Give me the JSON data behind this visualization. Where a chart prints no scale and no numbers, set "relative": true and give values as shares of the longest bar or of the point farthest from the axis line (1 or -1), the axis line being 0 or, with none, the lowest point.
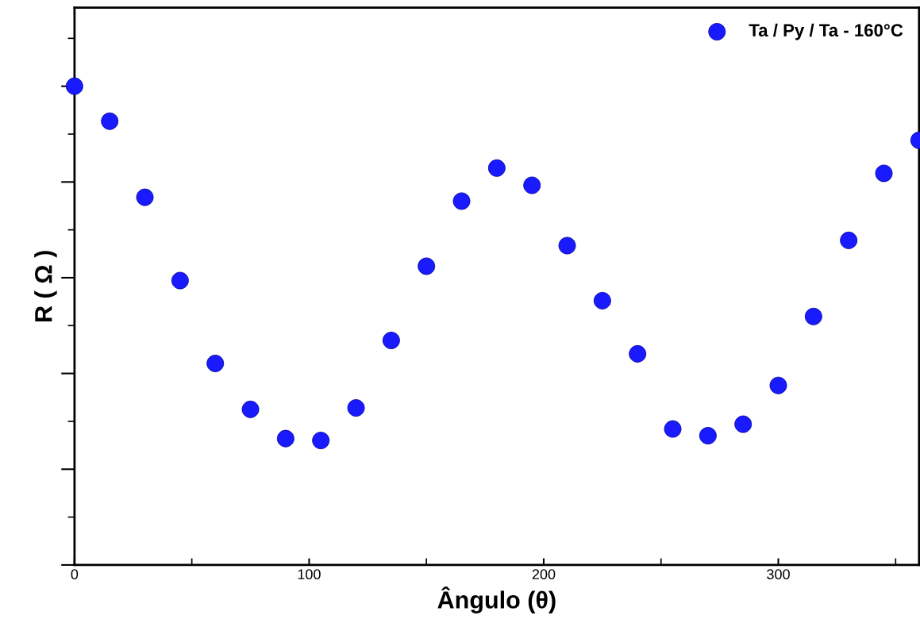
{
  "chart_data": {
    "type": "scatter",
    "relative": true,
    "xlabel": "Ângulo (θ)",
    "ylabel": "R ( Ω )",
    "x": [
      0,
      15,
      30,
      45,
      60,
      75,
      90,
      105,
      120,
      135,
      150,
      165,
      180,
      195,
      210,
      225,
      240,
      255,
      270,
      285,
      300,
      315,
      330,
      345,
      360
    ],
    "series": [
      {
        "name": "Ta / Py / Ta - 160°C",
        "color": "#1a1aff",
        "values": [
          1.0,
          0.927,
          0.768,
          0.594,
          0.421,
          0.325,
          0.264,
          0.26,
          0.328,
          0.469,
          0.624,
          0.76,
          0.829,
          0.793,
          0.667,
          0.552,
          0.441,
          0.284,
          0.27,
          0.294,
          0.375,
          0.519,
          0.678,
          0.818,
          0.887
        ]
      }
    ],
    "xlim": [
      0,
      360
    ],
    "xticks": [
      0,
      100,
      200,
      300
    ],
    "tick_labels": "x",
    "legend": "top right",
    "marker": "circle",
    "grid": false
  }
}
